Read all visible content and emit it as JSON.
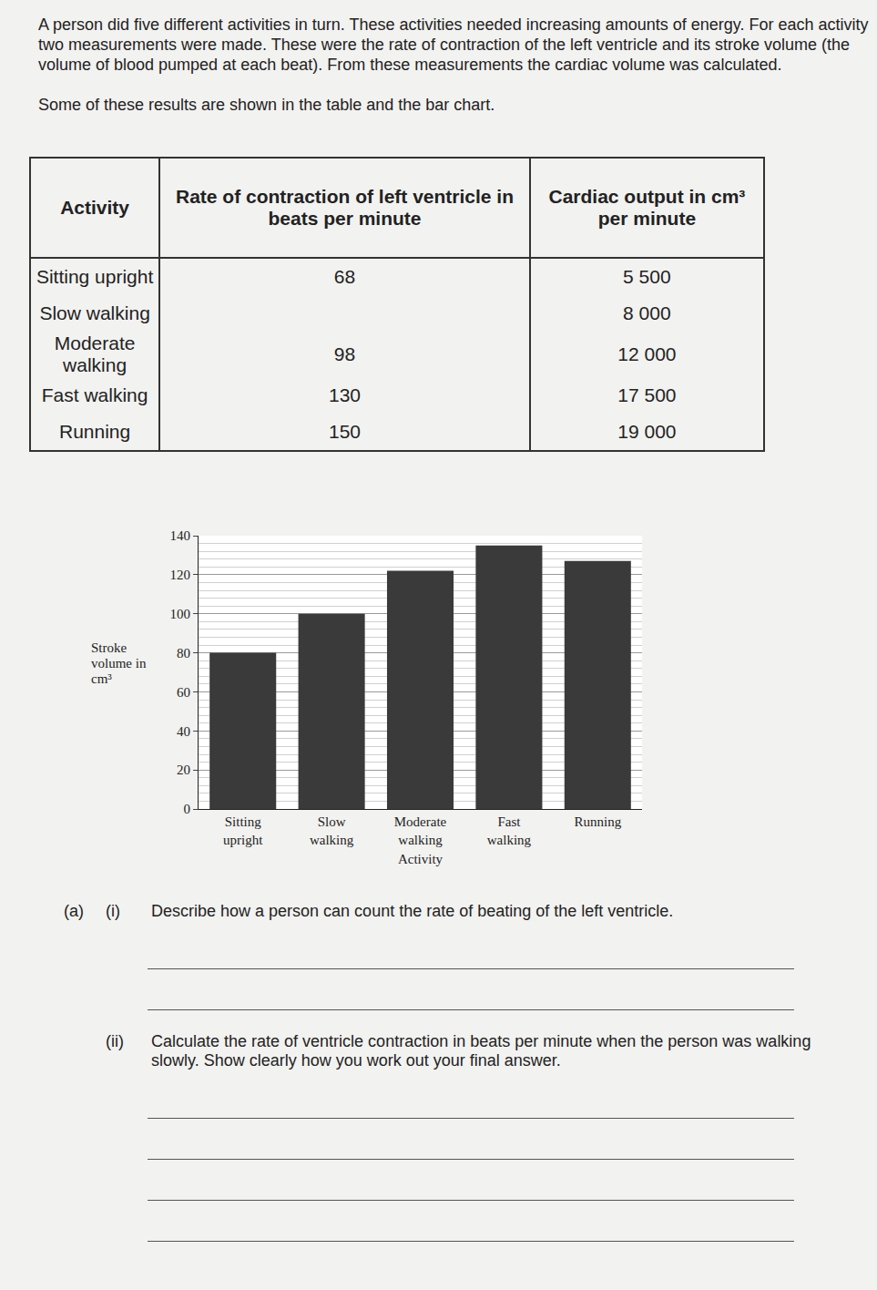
{
  "intro": [
    "A person did five different activities in turn. These activities needed increasing amounts of energy. For each activity two measurements were made. These were the rate of contraction of the left ventricle and its stroke volume (the volume of blood pumped at each beat). From these measurements the cardiac volume was calculated.",
    "Some of these results are shown in the table and the bar chart."
  ],
  "table": {
    "header": [
      "Activity",
      "Rate of contraction of left ventricle in beats per minute",
      "Cardiac output in cm³ per minute"
    ],
    "rows": [
      [
        "Sitting upright",
        "68",
        "5 500"
      ],
      [
        "Slow walking",
        null,
        "8 000"
      ],
      [
        "Moderate walking",
        "98",
        "12 000"
      ],
      [
        "Fast walking",
        "130",
        "17 500"
      ],
      [
        "Running",
        "150",
        "19 000"
      ]
    ]
  },
  "chart_data": {
    "type": "bar",
    "x_label": "Activity",
    "y_label": "Stroke volume in cm³",
    "categories": [
      "Sitting upright",
      "Slow walking",
      "Moderate walking",
      "Fast walking",
      "Running"
    ],
    "values": [
      80,
      100,
      122,
      135,
      127
    ],
    "color": "#3a3a3a",
    "ylim": [
      0,
      140
    ],
    "yticks": [
      0,
      20,
      40,
      60,
      80,
      100,
      120,
      140
    ],
    "grid": true
  },
  "questions": [
    {
      "part": "(a)",
      "sub": "(i)",
      "text": "Describe how a person can count the rate of beating of the left ventricle."
    },
    {
      "part": null,
      "sub": "(ii)",
      "text": "Calculate the rate of ventricle contraction in beats per minute when the person was walking slowly. Show clearly how you work out your final answer."
    }
  ]
}
